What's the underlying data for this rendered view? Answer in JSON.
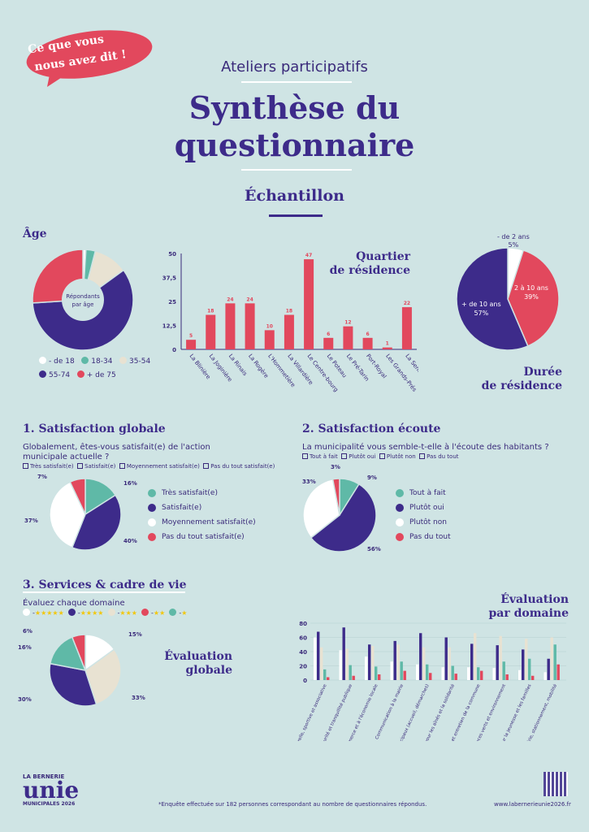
{
  "badge": {
    "line1": "Ce que vous",
    "line2": "nous avez dit !"
  },
  "header": {
    "subtitle": "Ateliers participatifs",
    "title_line1": "Synthèse du",
    "title_line2": "questionnaire"
  },
  "section_sample": "Échantillon",
  "age": {
    "title": "Âge",
    "center_label_1": "Répondants",
    "center_label_2": "par âge",
    "legend": [
      "- de 18",
      "18-34",
      "35-54",
      "55-74",
      "+ de 75"
    ],
    "colors": {
      "under18": "#ffffff",
      "a18_34": "#5fb9a7",
      "a35_54": "#e8e2d2",
      "a55_74": "#3d2b8a",
      "over75": "#e2485d"
    }
  },
  "quartier": {
    "title_line1": "Quartier",
    "title_line2": "de résidence",
    "y_ticks": [
      "50",
      "37,5",
      "25",
      "12,5",
      "0"
    ]
  },
  "duree": {
    "title_line1": "Durée",
    "title_line2": "de résidence",
    "labels": {
      "lt2": "- de 2 ans",
      "lt2_pct": "5%",
      "mid": "2 à 10 ans",
      "mid_pct": "39%",
      "gt10": "+ de 10 ans",
      "gt10_pct": "57%"
    }
  },
  "satisfaction": {
    "title": "1. Satisfaction globale",
    "question_line1": "Globalement, êtes-vous satisfait(e) de l'action",
    "question_line2": "municipale actuelle ?",
    "options": [
      "Très satisfait(e)",
      "Satisfait(e)",
      "Moyennement satisfait(e)",
      "Pas du tout satisfait(e)"
    ],
    "pcts": {
      "tres": "16%",
      "sat": "40%",
      "moy": "37%",
      "pas": "7%"
    }
  },
  "ecoute": {
    "title": "2. Satisfaction écoute",
    "question": "La municipalité vous semble-t-elle à l'écoute des habitants ?",
    "options": [
      "Tout à fait",
      "Plutôt oui",
      "Plutôt non",
      "Pas du tout"
    ],
    "pcts": {
      "tout": "9%",
      "oui": "56%",
      "non": "33%",
      "pas": "3%"
    }
  },
  "services": {
    "title": "3. Services & cadre de vie",
    "instruction": "Évaluez chaque domaine",
    "stars": [
      "★★★★★",
      "★★★★",
      "★★★",
      "★★",
      "★"
    ],
    "global_title_line1": "Évaluation",
    "global_title_line2": "globale",
    "global_pcts": {
      "p15": "15%",
      "p33": "33%",
      "p30": "30%",
      "p16": "16%",
      "p6": "6%"
    },
    "domain_title_line1": "Évaluation",
    "domain_title_line2": "par domaine",
    "y_ticks": [
      "80",
      "60",
      "40",
      "20",
      "0"
    ]
  },
  "footer": {
    "brand_top": "LA BERNERIE",
    "brand_main": "unie",
    "brand_bottom": "MUNICIPALES 2026",
    "note": "*Enquête effectuée sur 182 personnes correspondant au nombre de questionnaires répondus.",
    "url": "www.labernerieunie2026.fr"
  },
  "chart_data": [
    {
      "type": "pie",
      "title": "Âge",
      "categories": [
        "- de 18",
        "18-34",
        "35-54",
        "55-74",
        "+ de 75"
      ],
      "values": [
        1,
        3,
        11,
        59,
        26
      ]
    },
    {
      "type": "bar",
      "title": "Quartier de résidence",
      "categories": [
        "La Blinière",
        "La Joginière",
        "La Rinais",
        "La Rogère",
        "L'Hommetière",
        "La Villardière",
        "Le Centre-bourg",
        "Le Poteau",
        "Le Pré-Tarin",
        "Port-Royal",
        "Les Grands-Prés",
        "La Sennetière"
      ],
      "values": [
        5,
        18,
        24,
        24,
        10,
        18,
        47,
        6,
        12,
        6,
        1,
        22
      ],
      "ylim": [
        0,
        50
      ],
      "color": "#e2485d"
    },
    {
      "type": "pie",
      "title": "Durée de résidence",
      "categories": [
        "- de 2 ans",
        "2 à 10 ans",
        "+ de 10 ans"
      ],
      "values": [
        5,
        39,
        57
      ]
    },
    {
      "type": "pie",
      "title": "1. Satisfaction globale",
      "categories": [
        "Très satisfait(e)",
        "Satisfait(e)",
        "Moyennement satisfait(e)",
        "Pas du tout satisfait(e)"
      ],
      "values": [
        16,
        40,
        37,
        7
      ]
    },
    {
      "type": "pie",
      "title": "2. Satisfaction écoute",
      "categories": [
        "Tout à fait",
        "Plutôt oui",
        "Plutôt non",
        "Pas du tout"
      ],
      "values": [
        9,
        56,
        33,
        3
      ]
    },
    {
      "type": "pie",
      "title": "Évaluation globale",
      "categories": [
        "★★★★★",
        "★★★★",
        "★★★",
        "★★",
        "★"
      ],
      "values": [
        15,
        30,
        33,
        16,
        6
      ]
    },
    {
      "type": "bar",
      "title": "Évaluation par domaine",
      "categories": [
        "Vie culturelle, sportive et associative",
        "Sécurité et tranquillité publique",
        "Soutien au commerce et à l'économie locale",
        "Communication à la mairie",
        "Services municipaux (accueil, démarches)",
        "Actions pour les aînés et la solidarité",
        "Propreté et entretien de la commune",
        "Espaces verts et environnement",
        "Actions pour la jeunesse et les familles",
        "Voirie, stationnement, mobilité"
      ],
      "series": [
        {
          "name": "★★★★★",
          "values": [
            60,
            42,
            33,
            26,
            22,
            18,
            18,
            17,
            14,
            11
          ]
        },
        {
          "name": "★★★★",
          "values": [
            68,
            74,
            50,
            55,
            66,
            60,
            51,
            49,
            43,
            30
          ]
        },
        {
          "name": "★★★",
          "values": [
            46,
            44,
            48,
            50,
            46,
            46,
            66,
            62,
            58,
            60
          ]
        },
        {
          "name": "★★",
          "values": [
            15,
            21,
            19,
            26,
            22,
            20,
            18,
            26,
            30,
            50
          ]
        },
        {
          "name": "★",
          "values": [
            4,
            6,
            8,
            13,
            10,
            9,
            13,
            8,
            6,
            22
          ]
        }
      ],
      "ylim": [
        0,
        80
      ]
    }
  ]
}
